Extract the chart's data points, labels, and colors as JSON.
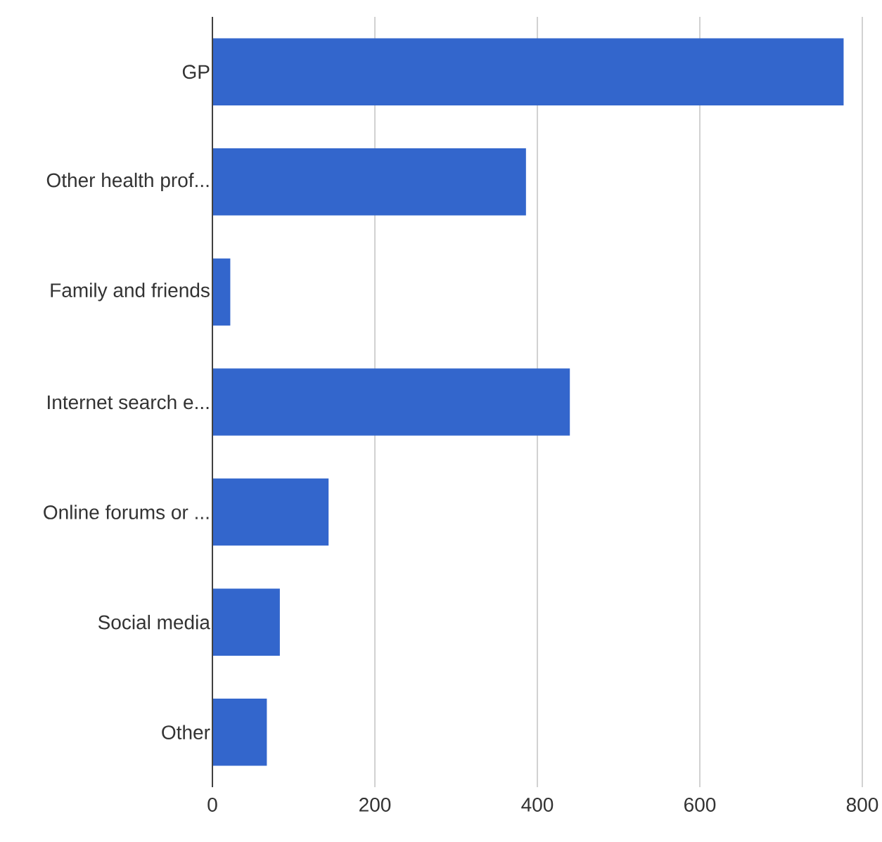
{
  "chart_data": {
    "type": "bar",
    "orientation": "horizontal",
    "grid": "x",
    "categories": [
      "GP",
      "Other health prof...",
      "Family and friends",
      "Internet search e...",
      "Online forums or ...",
      "Social media",
      "Other"
    ],
    "values": [
      777,
      386,
      22,
      440,
      143,
      83,
      67
    ],
    "color": "#3366cc",
    "xlim": [
      0,
      800
    ],
    "xticks": [
      0,
      200,
      400,
      600,
      800
    ]
  }
}
